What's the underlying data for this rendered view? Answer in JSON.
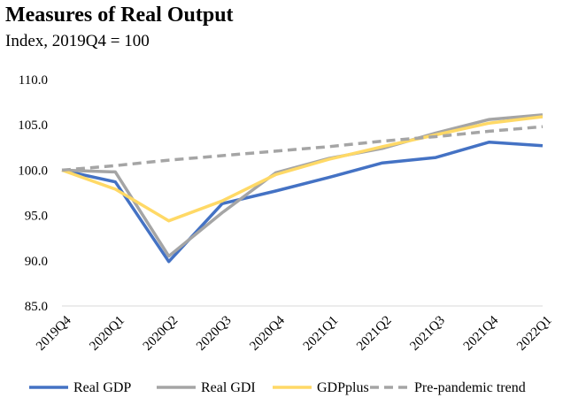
{
  "chart_data": {
    "type": "line",
    "title": "Measures of Real Output",
    "subtitle": "Index, 2019Q4 = 100",
    "xlabel": "",
    "ylabel": "",
    "ylim": [
      85,
      110
    ],
    "y_ticks": [
      "85.0",
      "90.0",
      "95.0",
      "100.0",
      "105.0",
      "110.0"
    ],
    "categories": [
      "2019Q4",
      "2020Q1",
      "2020Q2",
      "2020Q3",
      "2020Q4",
      "2021Q1",
      "2021Q2",
      "2021Q3",
      "2021Q4",
      "2022Q1"
    ],
    "grid": false,
    "legend": "bottom",
    "series": [
      {
        "name": "Real GDP",
        "color": "#4472C4",
        "dash": "solid",
        "values": [
          100.0,
          98.7,
          89.9,
          96.3,
          97.7,
          99.2,
          100.8,
          101.4,
          103.1,
          102.7
        ]
      },
      {
        "name": "Real GDI",
        "color": "#A5A5A5",
        "dash": "solid",
        "values": [
          100.0,
          99.8,
          90.5,
          95.3,
          99.7,
          101.3,
          102.4,
          104.1,
          105.6,
          106.1
        ]
      },
      {
        "name": "GDPplus",
        "color": "#FFD966",
        "dash": "solid",
        "values": [
          100.0,
          97.9,
          94.4,
          96.6,
          99.5,
          101.2,
          102.6,
          103.9,
          105.2,
          105.9
        ]
      },
      {
        "name": "Pre-pandemic trend",
        "color": "#A5A5A5",
        "dash": "dashed",
        "values": [
          100.0,
          100.5,
          101.1,
          101.6,
          102.1,
          102.6,
          103.2,
          103.7,
          104.3,
          104.8
        ]
      }
    ]
  }
}
